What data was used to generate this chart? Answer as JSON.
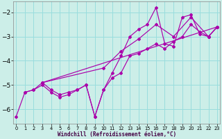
{
  "xlabel": "Windchill (Refroidissement éolien,°C)",
  "bg_color": "#cceee8",
  "line_color": "#aa00aa",
  "grid_color": "#99dddd",
  "xlim": [
    -0.3,
    23.3
  ],
  "ylim": [
    -6.6,
    -1.55
  ],
  "yticks": [
    -6,
    -5,
    -4,
    -3,
    -2
  ],
  "xticks": [
    0,
    1,
    2,
    3,
    4,
    5,
    6,
    7,
    8,
    9,
    10,
    11,
    12,
    13,
    14,
    15,
    16,
    17,
    18,
    19,
    20,
    21,
    22,
    23
  ],
  "series": [
    [
      0,
      1,
      2,
      3,
      4,
      5,
      6,
      7,
      8,
      9,
      10,
      11,
      12,
      13,
      14,
      15,
      16,
      17,
      18,
      19,
      20,
      21,
      22,
      23
    ],
    [
      -6.3,
      -5.3,
      -5.2,
      -4.9,
      -5.2,
      -5.4,
      -5.3,
      -5.2,
      -5.0,
      -6.3,
      -5.2,
      -4.5,
      -3.8,
      -3.0,
      -2.7,
      -2.5,
      -1.8,
      -3.3,
      -3.4,
      -2.2,
      -2.1,
      -2.9,
      -3.0,
      -2.6
    ],
    [
      1,
      2,
      3,
      4,
      5,
      6,
      7,
      8,
      9,
      10,
      11,
      12,
      13,
      14,
      15,
      16,
      17,
      18,
      19,
      20,
      21,
      22,
      23
    ],
    [
      -5.3,
      -5.2,
      -5.0,
      -5.3,
      -5.5,
      -5.4,
      -5.2,
      -5.0,
      -6.3,
      -5.2,
      -4.7,
      -4.5,
      -3.8,
      -3.7,
      -3.5,
      -3.3,
      -3.5,
      -3.2,
      -3.0,
      -2.5,
      -2.8,
      -3.0,
      -2.6
    ],
    [
      3,
      10,
      12,
      14,
      16,
      18,
      20,
      22,
      23
    ],
    [
      -4.9,
      -4.3,
      -3.6,
      -3.1,
      -2.5,
      -3.0,
      -2.2,
      -3.0,
      -2.6
    ],
    [
      3,
      23
    ],
    [
      -4.9,
      -2.6
    ]
  ]
}
